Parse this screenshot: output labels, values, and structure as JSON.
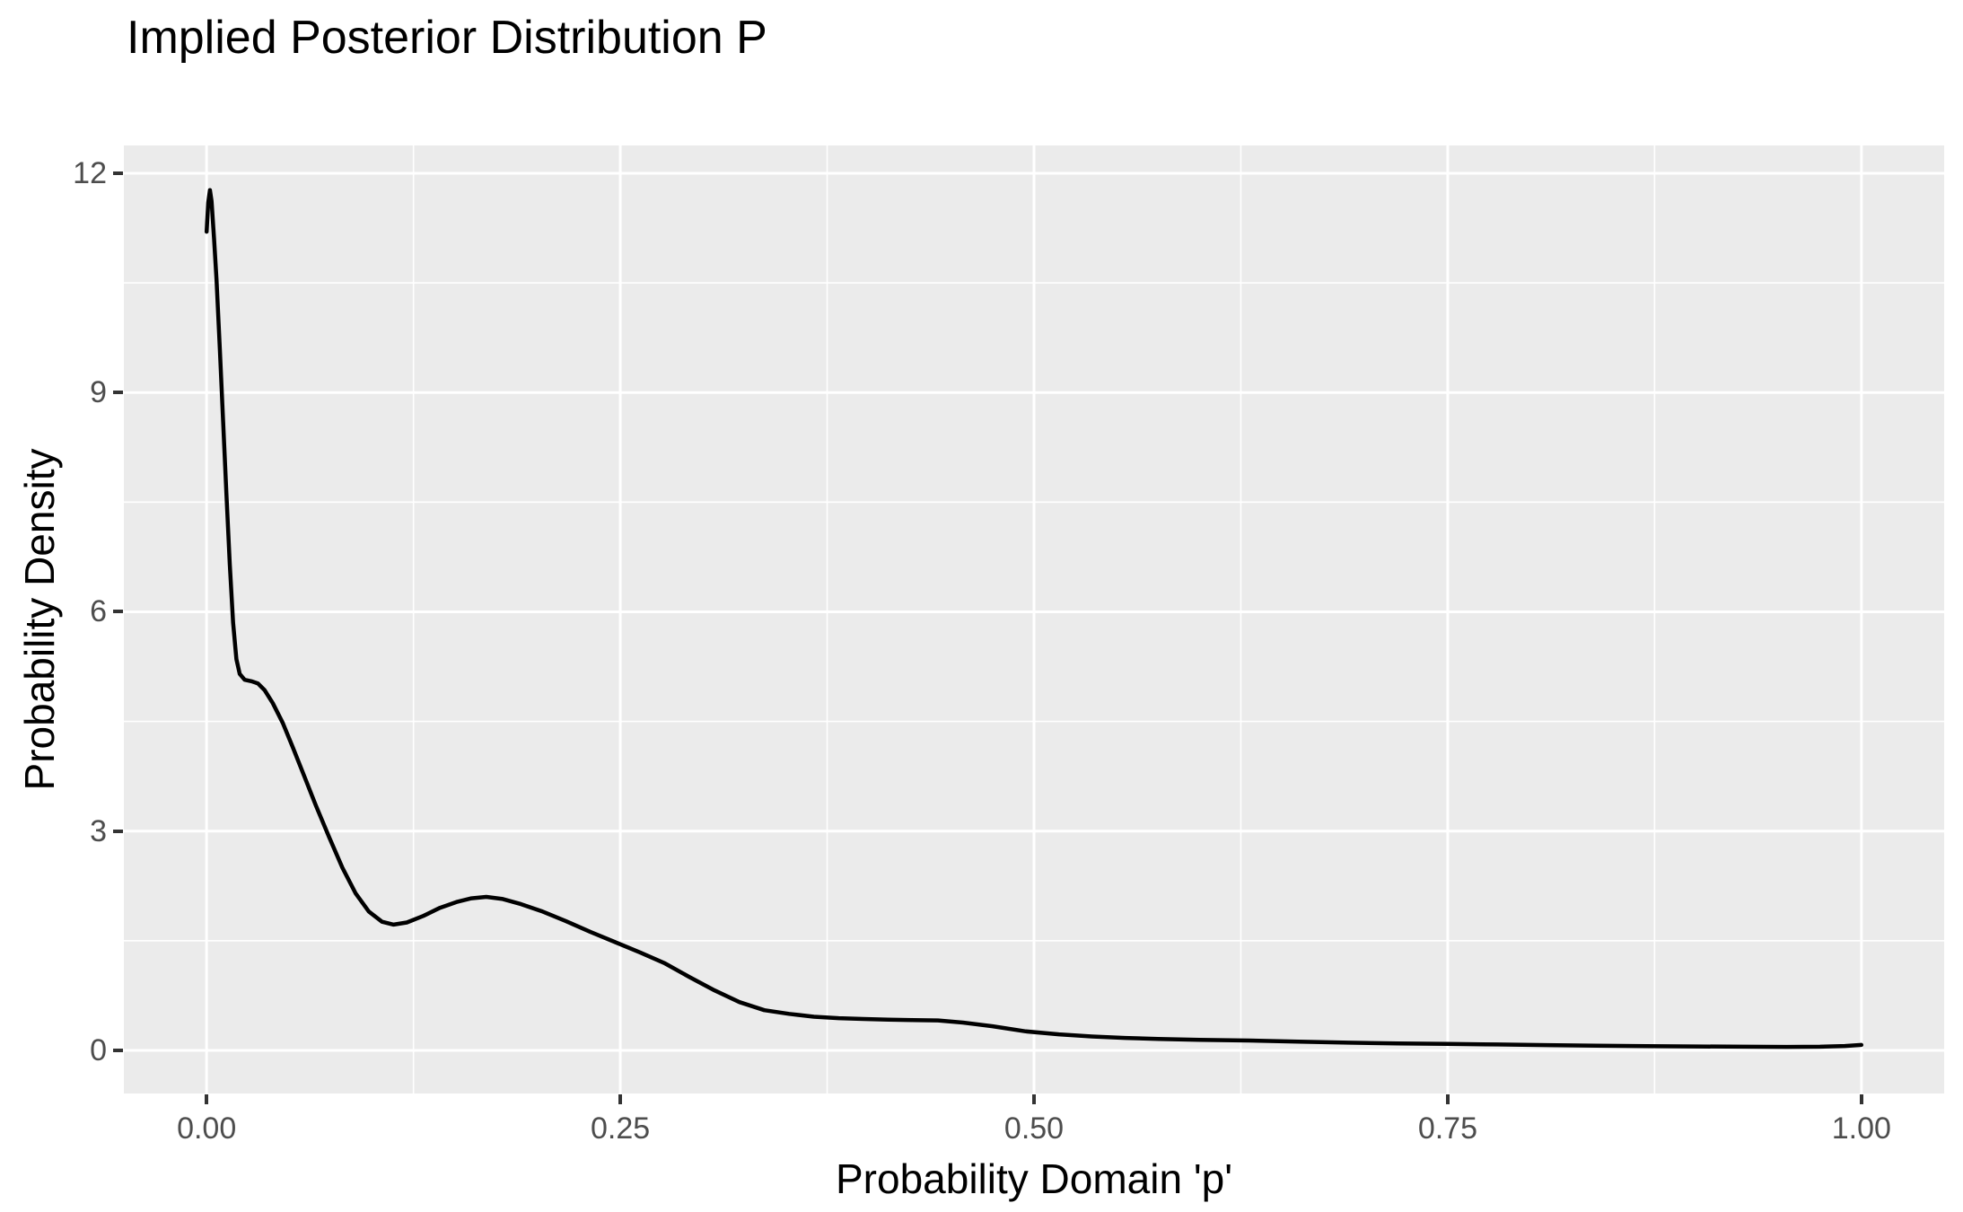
{
  "chart_data": {
    "type": "line",
    "title": "Implied Posterior Distribution P",
    "xlabel": "Probability Domain 'p'",
    "ylabel": "Probability Density",
    "legend": "none",
    "grid": true,
    "panel_style": "ggplot-gray",
    "xlim": [
      -0.05,
      1.05
    ],
    "ylim": [
      -0.59,
      12.38
    ],
    "x_ticks": {
      "values": [
        0,
        0.25,
        0.5,
        0.75,
        1.0
      ],
      "labels": [
        "0.00",
        "0.25",
        "0.50",
        "0.75",
        "1.00"
      ]
    },
    "y_ticks": {
      "values": [
        0,
        3,
        6,
        9,
        12
      ],
      "labels": [
        "0",
        "3",
        "6",
        "9",
        "12"
      ]
    },
    "x_minor": [
      0.125,
      0.375,
      0.625,
      0.875
    ],
    "y_minor": [
      1.5,
      4.5,
      7.5,
      10.5
    ],
    "colors": {
      "background": "#FFFFFF",
      "panel_bg": "#EBEBEB",
      "gridline": "#FFFFFF",
      "line": "#000000",
      "tick_text": "#4D4D4D",
      "tick_mark": "#333333",
      "title_text": "#000000"
    },
    "series": [
      {
        "name": "posterior density",
        "color": "#000000",
        "points": [
          [
            0.0,
            11.2
          ],
          [
            0.001,
            11.6
          ],
          [
            0.002,
            11.77
          ],
          [
            0.003,
            11.62
          ],
          [
            0.0045,
            11.1
          ],
          [
            0.006,
            10.55
          ],
          [
            0.008,
            9.6
          ],
          [
            0.01,
            8.6
          ],
          [
            0.012,
            7.6
          ],
          [
            0.014,
            6.65
          ],
          [
            0.016,
            5.85
          ],
          [
            0.018,
            5.35
          ],
          [
            0.02,
            5.15
          ],
          [
            0.023,
            5.07
          ],
          [
            0.027,
            5.05
          ],
          [
            0.031,
            5.02
          ],
          [
            0.035,
            4.93
          ],
          [
            0.04,
            4.75
          ],
          [
            0.046,
            4.48
          ],
          [
            0.052,
            4.15
          ],
          [
            0.059,
            3.75
          ],
          [
            0.066,
            3.35
          ],
          [
            0.074,
            2.92
          ],
          [
            0.082,
            2.5
          ],
          [
            0.09,
            2.15
          ],
          [
            0.098,
            1.9
          ],
          [
            0.106,
            1.76
          ],
          [
            0.113,
            1.72
          ],
          [
            0.121,
            1.75
          ],
          [
            0.131,
            1.84
          ],
          [
            0.141,
            1.95
          ],
          [
            0.151,
            2.03
          ],
          [
            0.16,
            2.08
          ],
          [
            0.169,
            2.1
          ],
          [
            0.179,
            2.07
          ],
          [
            0.19,
            2.0
          ],
          [
            0.203,
            1.9
          ],
          [
            0.217,
            1.77
          ],
          [
            0.232,
            1.62
          ],
          [
            0.247,
            1.48
          ],
          [
            0.262,
            1.34
          ],
          [
            0.277,
            1.19
          ],
          [
            0.292,
            1.0
          ],
          [
            0.307,
            0.82
          ],
          [
            0.322,
            0.66
          ],
          [
            0.337,
            0.55
          ],
          [
            0.352,
            0.5
          ],
          [
            0.367,
            0.46
          ],
          [
            0.382,
            0.44
          ],
          [
            0.397,
            0.43
          ],
          [
            0.412,
            0.42
          ],
          [
            0.427,
            0.415
          ],
          [
            0.442,
            0.41
          ],
          [
            0.457,
            0.38
          ],
          [
            0.475,
            0.33
          ],
          [
            0.495,
            0.26
          ],
          [
            0.515,
            0.22
          ],
          [
            0.535,
            0.19
          ],
          [
            0.555,
            0.17
          ],
          [
            0.575,
            0.155
          ],
          [
            0.6,
            0.145
          ],
          [
            0.63,
            0.135
          ],
          [
            0.66,
            0.12
          ],
          [
            0.69,
            0.105
          ],
          [
            0.72,
            0.095
          ],
          [
            0.75,
            0.088
          ],
          [
            0.78,
            0.08
          ],
          [
            0.81,
            0.072
          ],
          [
            0.84,
            0.065
          ],
          [
            0.87,
            0.058
          ],
          [
            0.9,
            0.053
          ],
          [
            0.93,
            0.05
          ],
          [
            0.955,
            0.048
          ],
          [
            0.975,
            0.05
          ],
          [
            0.99,
            0.06
          ],
          [
            1.0,
            0.075
          ]
        ]
      }
    ]
  }
}
